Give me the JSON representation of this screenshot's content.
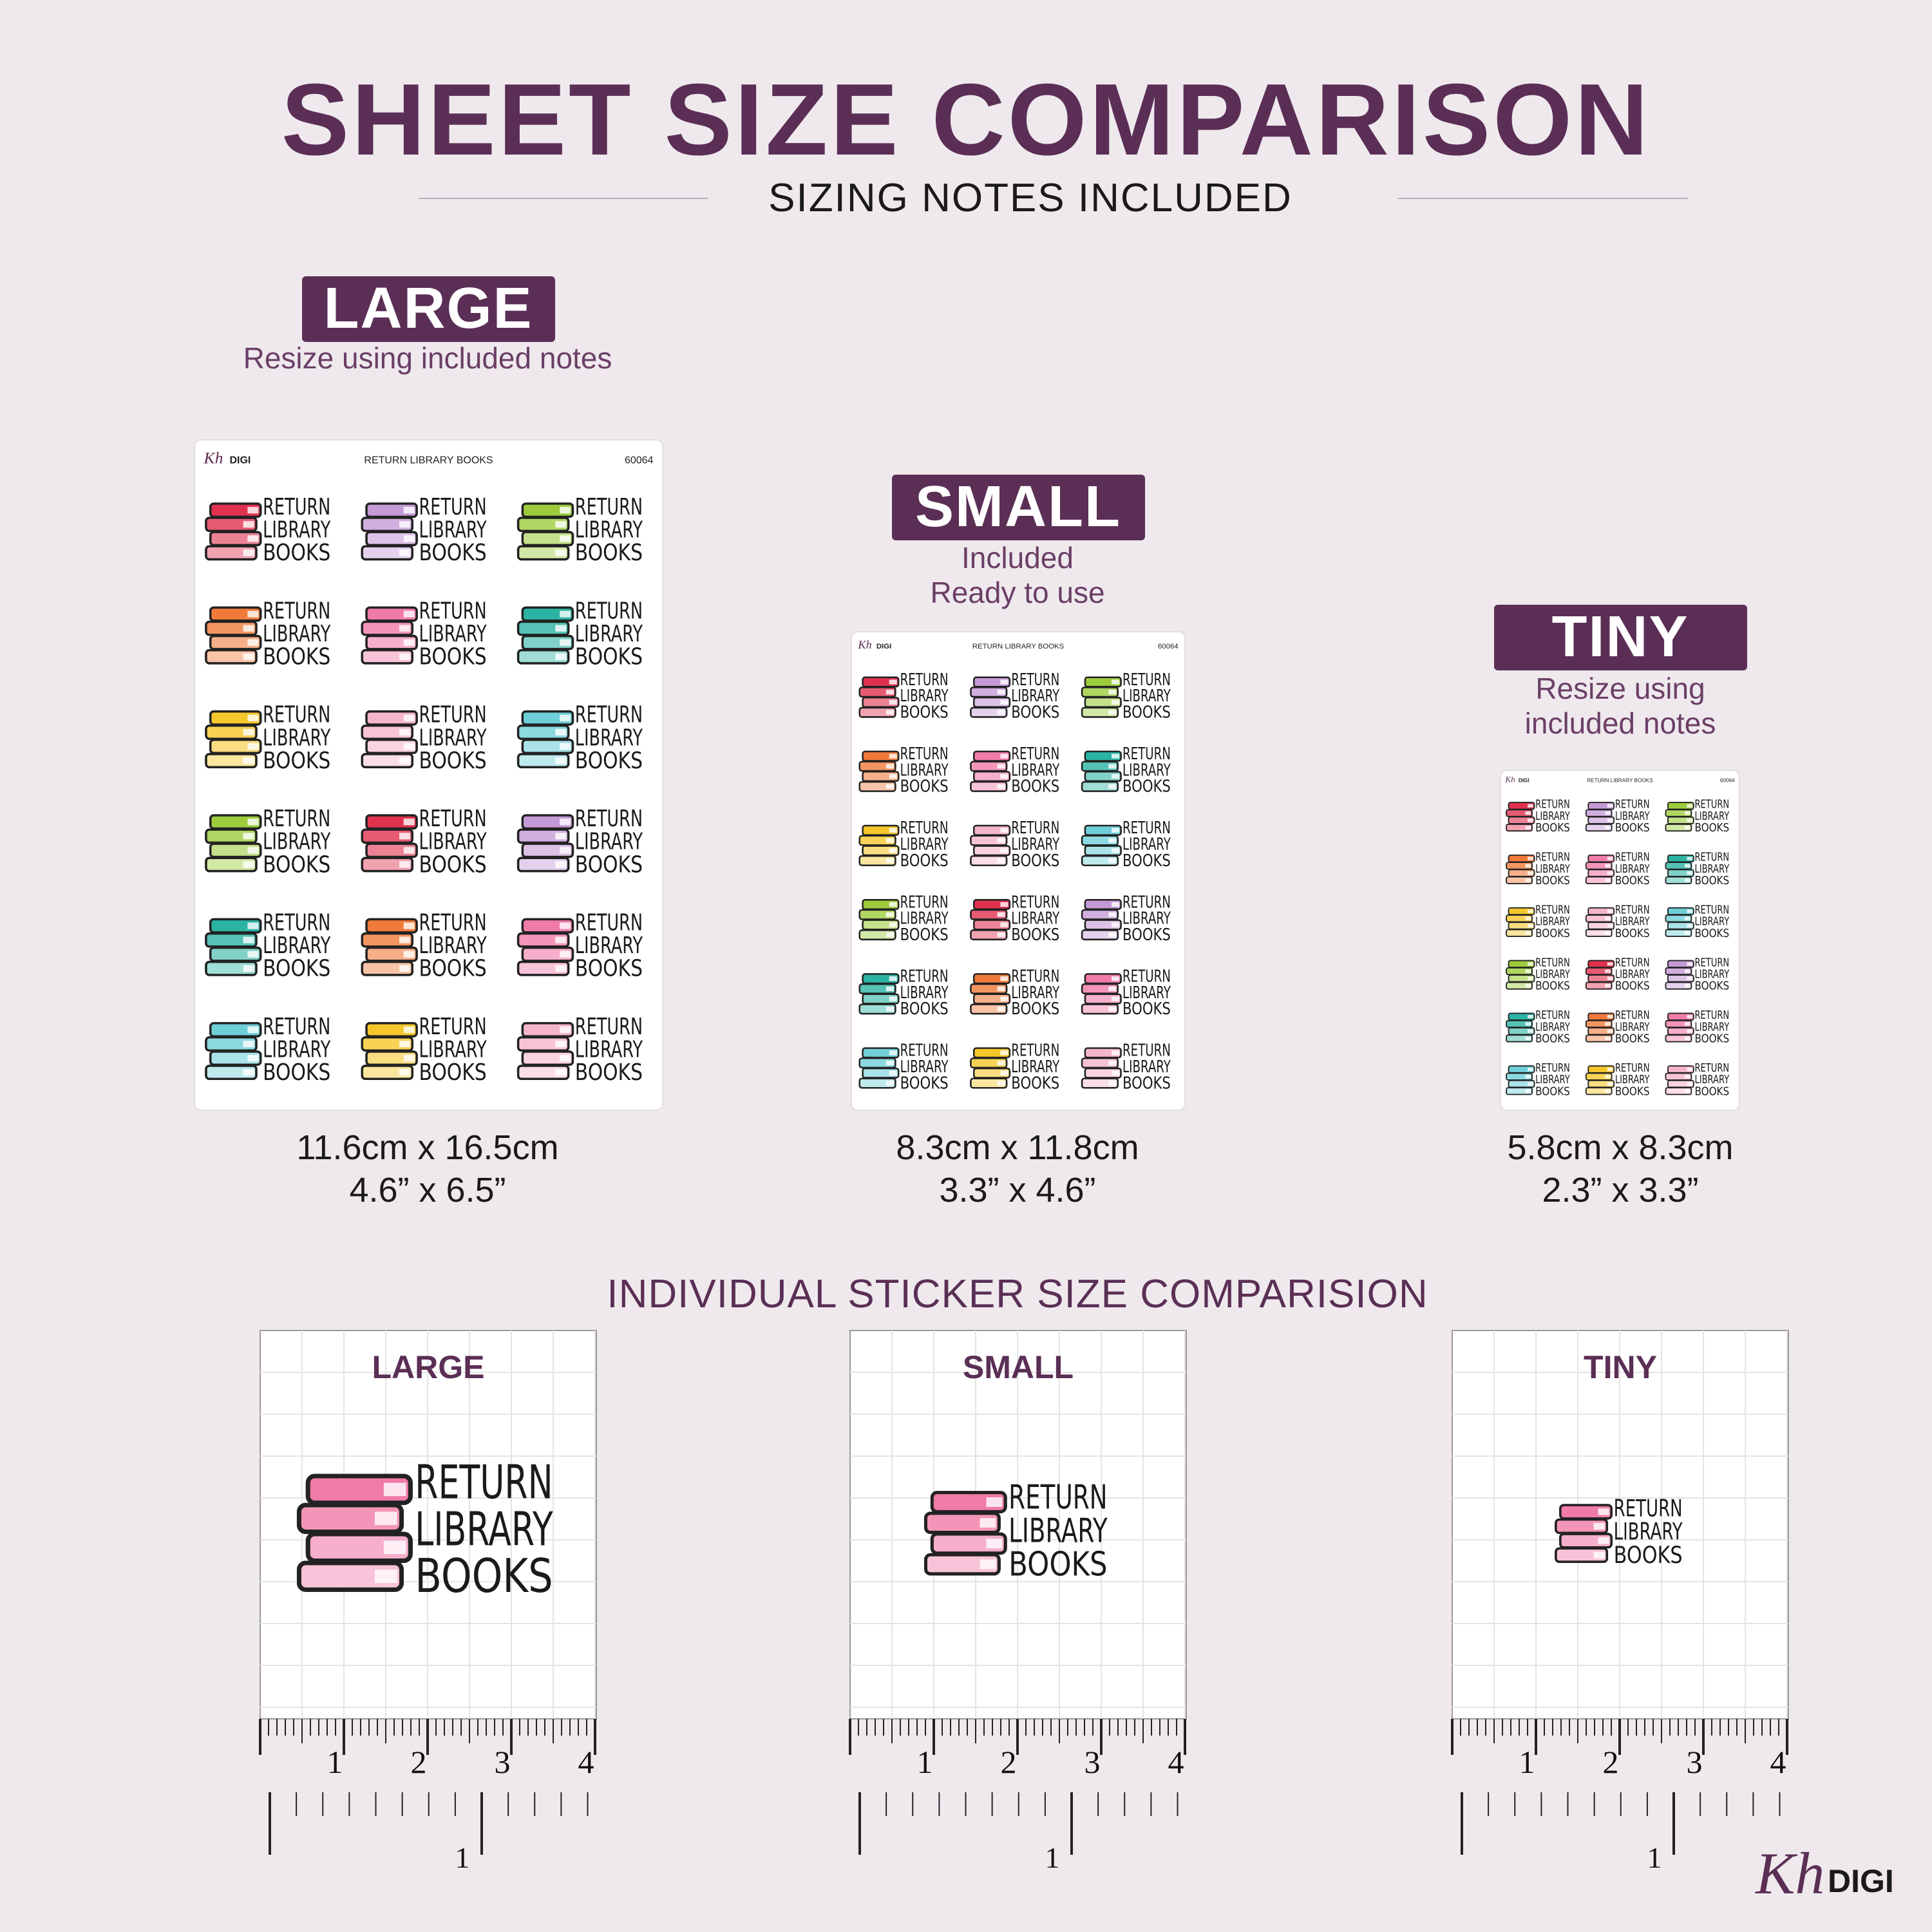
{
  "header": {
    "title": "SHEET SIZE COMPARISON",
    "subtitle": "SIZING NOTES INCLUDED"
  },
  "sheets": [
    {
      "label": "LARGE",
      "note": [
        "Resize using included notes"
      ],
      "size_cm": "11.6cm x 16.5cm",
      "size_in": "4.6” x 6.5”"
    },
    {
      "label": "SMALL",
      "note": [
        "Included",
        "Ready to use"
      ],
      "size_cm": "8.3cm x 11.8cm",
      "size_in": "3.3” x 4.6”"
    },
    {
      "label": "TINY",
      "note": [
        "Resize using",
        "included notes"
      ],
      "size_cm": "5.8cm x 8.3cm",
      "size_in": "2.3” x 3.3”"
    }
  ],
  "sheet_header": {
    "brand": "Kh",
    "brand_suffix": "DIGI",
    "title": "RETURN LIBRARY BOOKS",
    "code": "60064"
  },
  "sticker_text": [
    "RETURN",
    "LIBRARY",
    "BOOKS"
  ],
  "sticker_colors": [
    "#e0314f",
    "#c49ad6",
    "#9ccc3c",
    "#f07a3a",
    "#f07aa8",
    "#2bb3a3",
    "#f5c72b",
    "#f5b5cc",
    "#6fcfd8",
    "#9ccc3c",
    "#e0314f",
    "#c49ad6",
    "#2bb3a3",
    "#f07a3a",
    "#f07aa8",
    "#6fcfd8",
    "#f5c72b",
    "#f5b5cc"
  ],
  "individual": {
    "title": "INDIVIDUAL STICKER SIZE COMPARISION",
    "panels": [
      "LARGE",
      "SMALL",
      "TINY"
    ],
    "sticker_color": "#f07aa8",
    "ruler_top_labels": [
      1,
      2,
      3,
      4
    ],
    "ruler_bottom_label": 1
  },
  "footer_logo": {
    "brand": "Kh",
    "suffix": "DIGI"
  }
}
